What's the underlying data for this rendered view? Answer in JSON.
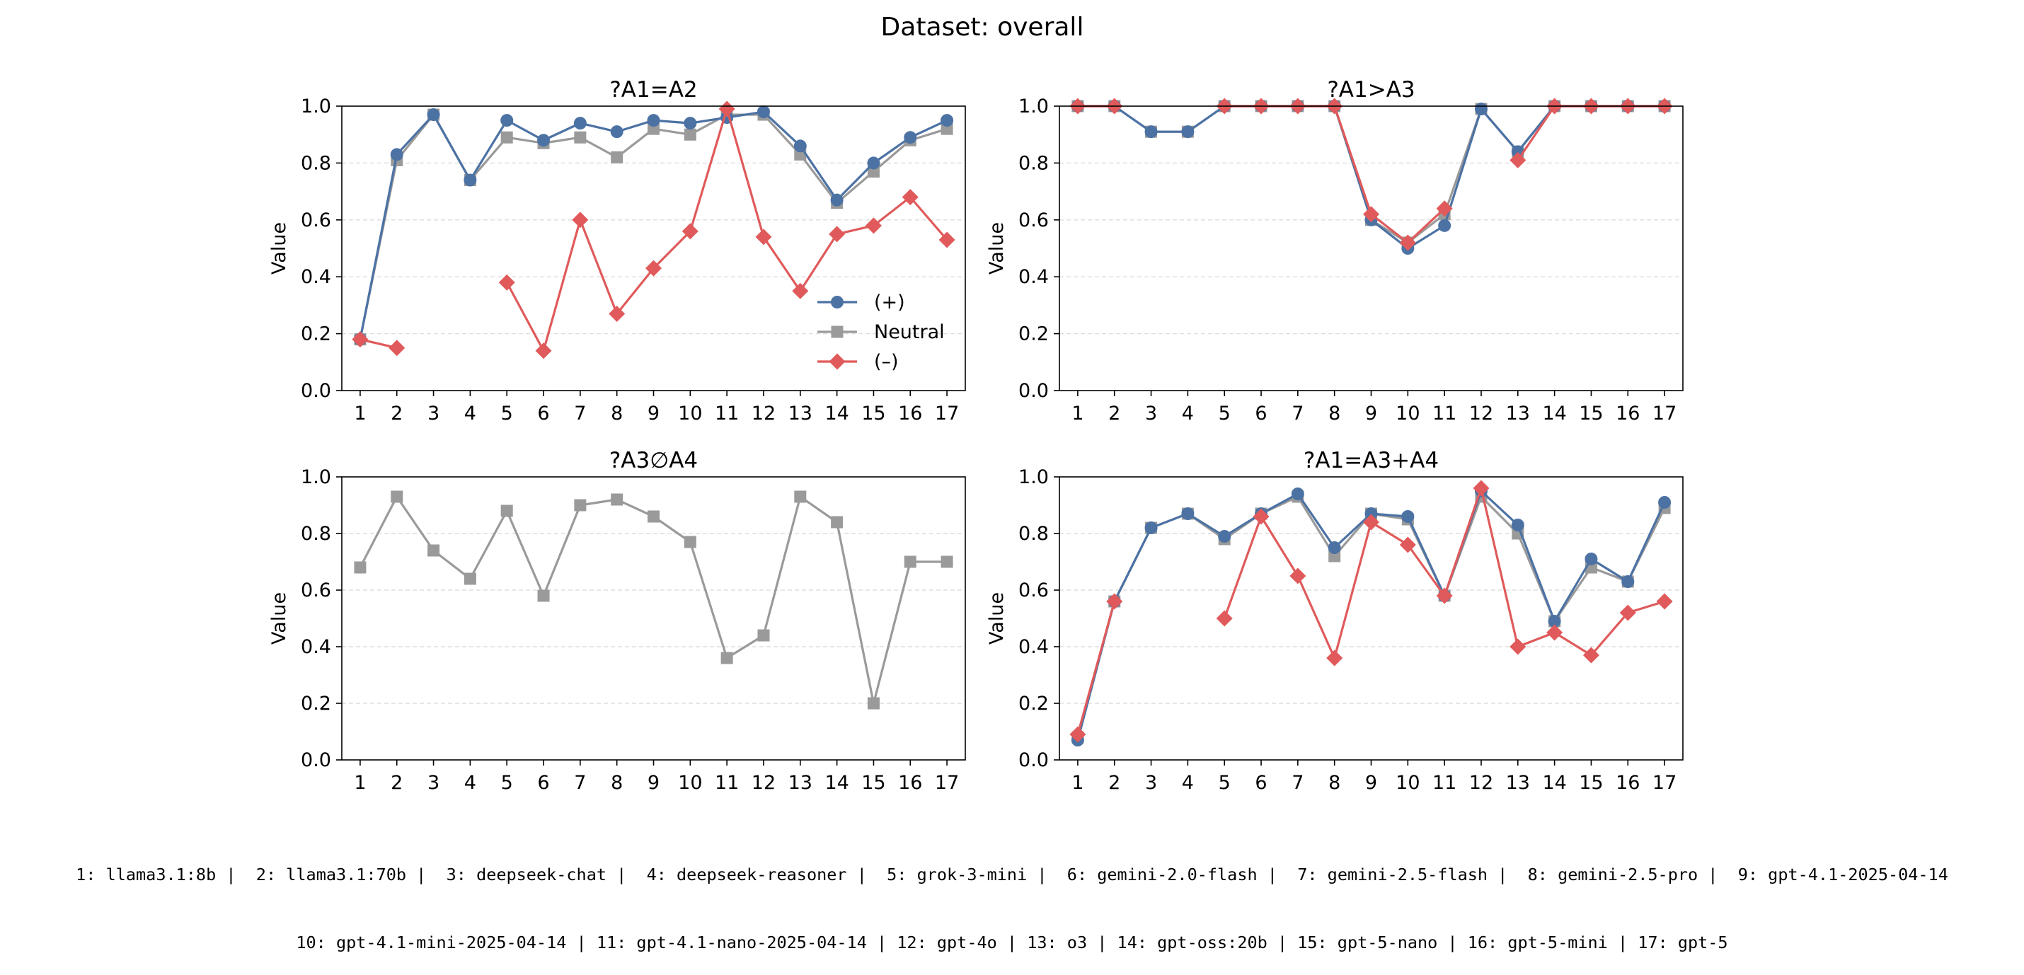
{
  "chart_data": {
    "title": "Dataset: overall",
    "type": "line",
    "legend": {
      "placement": "lower-right",
      "panel": 0,
      "entries": [
        {
          "label": "(+)",
          "series": "plus"
        },
        {
          "label": "Neutral",
          "series": "neutral"
        },
        {
          "label": "(–)",
          "series": "minus"
        }
      ]
    },
    "colors": {
      "plus": "#4c72a4",
      "neutral": "#9a9a9a",
      "minus": "#e05a5b"
    },
    "markers": {
      "plus": "circle",
      "neutral": "square",
      "minus": "diamond"
    },
    "grid": {
      "y": true,
      "style": "dashed",
      "x": false
    },
    "x_ticks": [
      "1",
      "2",
      "3",
      "4",
      "5",
      "6",
      "7",
      "8",
      "9",
      "10",
      "11",
      "12",
      "13",
      "14",
      "15",
      "16",
      "17"
    ],
    "y_ticks": [
      "0.0",
      "0.2",
      "0.4",
      "0.6",
      "0.8",
      "1.0"
    ],
    "ylim": [
      0,
      1
    ],
    "panels": [
      {
        "title": "?A1=A2",
        "ylabel": "Value",
        "series": {
          "plus": [
            0.18,
            0.83,
            0.97,
            0.74,
            0.95,
            0.88,
            0.94,
            0.91,
            0.95,
            0.94,
            0.96,
            0.98,
            0.86,
            0.67,
            0.8,
            0.89,
            0.95
          ],
          "neutral": [
            0.18,
            0.81,
            0.97,
            0.74,
            0.89,
            0.87,
            0.89,
            0.82,
            0.92,
            0.9,
            0.97,
            0.97,
            0.83,
            0.66,
            0.77,
            0.88,
            0.92
          ],
          "minus": [
            0.18,
            0.15,
            null,
            null,
            0.38,
            0.14,
            0.6,
            0.27,
            0.43,
            0.56,
            0.99,
            0.54,
            0.35,
            0.55,
            0.58,
            0.68,
            0.53
          ]
        }
      },
      {
        "title": "?A1>A3",
        "ylabel": "Value",
        "series": {
          "plus": [
            1.0,
            1.0,
            0.91,
            0.91,
            1.0,
            1.0,
            1.0,
            1.0,
            0.6,
            0.5,
            0.58,
            0.99,
            0.84,
            1.0,
            1.0,
            1.0,
            1.0
          ],
          "neutral": [
            1.0,
            1.0,
            0.91,
            0.91,
            1.0,
            1.0,
            1.0,
            1.0,
            0.6,
            0.52,
            0.62,
            0.99,
            0.84,
            1.0,
            1.0,
            1.0,
            1.0
          ],
          "minus": [
            1.0,
            1.0,
            null,
            null,
            1.0,
            1.0,
            1.0,
            1.0,
            0.62,
            0.52,
            0.64,
            null,
            0.81,
            1.0,
            1.0,
            1.0,
            1.0
          ]
        }
      },
      {
        "title": "?A3∅A4",
        "ylabel": "Value",
        "series": {
          "plus": [
            null,
            null,
            null,
            null,
            null,
            null,
            null,
            null,
            null,
            null,
            null,
            null,
            null,
            null,
            null,
            null,
            null
          ],
          "neutral": [
            0.68,
            0.93,
            0.74,
            0.64,
            0.88,
            0.58,
            0.9,
            0.92,
            0.86,
            0.77,
            0.36,
            0.44,
            0.93,
            0.84,
            0.2,
            0.7,
            0.7
          ],
          "minus": [
            null,
            null,
            null,
            null,
            null,
            null,
            null,
            null,
            null,
            null,
            null,
            null,
            null,
            null,
            null,
            null,
            null
          ]
        }
      },
      {
        "title": "?A1=A3+A4",
        "ylabel": "Value",
        "series": {
          "plus": [
            0.07,
            0.56,
            0.82,
            0.87,
            0.79,
            0.87,
            0.94,
            0.75,
            0.87,
            0.86,
            0.58,
            0.95,
            0.83,
            0.49,
            0.71,
            0.63,
            0.91
          ],
          "neutral": [
            0.08,
            0.56,
            0.82,
            0.87,
            0.78,
            0.87,
            0.93,
            0.72,
            0.87,
            0.85,
            0.58,
            0.93,
            0.8,
            0.49,
            0.68,
            0.63,
            0.89
          ],
          "minus": [
            0.09,
            0.56,
            null,
            null,
            0.5,
            0.86,
            0.65,
            0.36,
            0.84,
            0.76,
            0.58,
            0.96,
            0.4,
            0.45,
            0.37,
            0.52,
            0.56
          ]
        }
      }
    ]
  },
  "footer": {
    "line1": "1: llama3.1:8b |  2: llama3.1:70b |  3: deepseek-chat |  4: deepseek-reasoner |  5: grok-3-mini |  6: gemini-2.0-flash |  7: gemini-2.5-flash |  8: gemini-2.5-pro |  9: gpt-4.1-2025-04-14",
    "line2": "10: gpt-4.1-mini-2025-04-14 | 11: gpt-4.1-nano-2025-04-14 | 12: gpt-4o | 13: o3 | 14: gpt-oss:20b | 15: gpt-5-nano | 16: gpt-5-mini | 17: gpt-5"
  }
}
